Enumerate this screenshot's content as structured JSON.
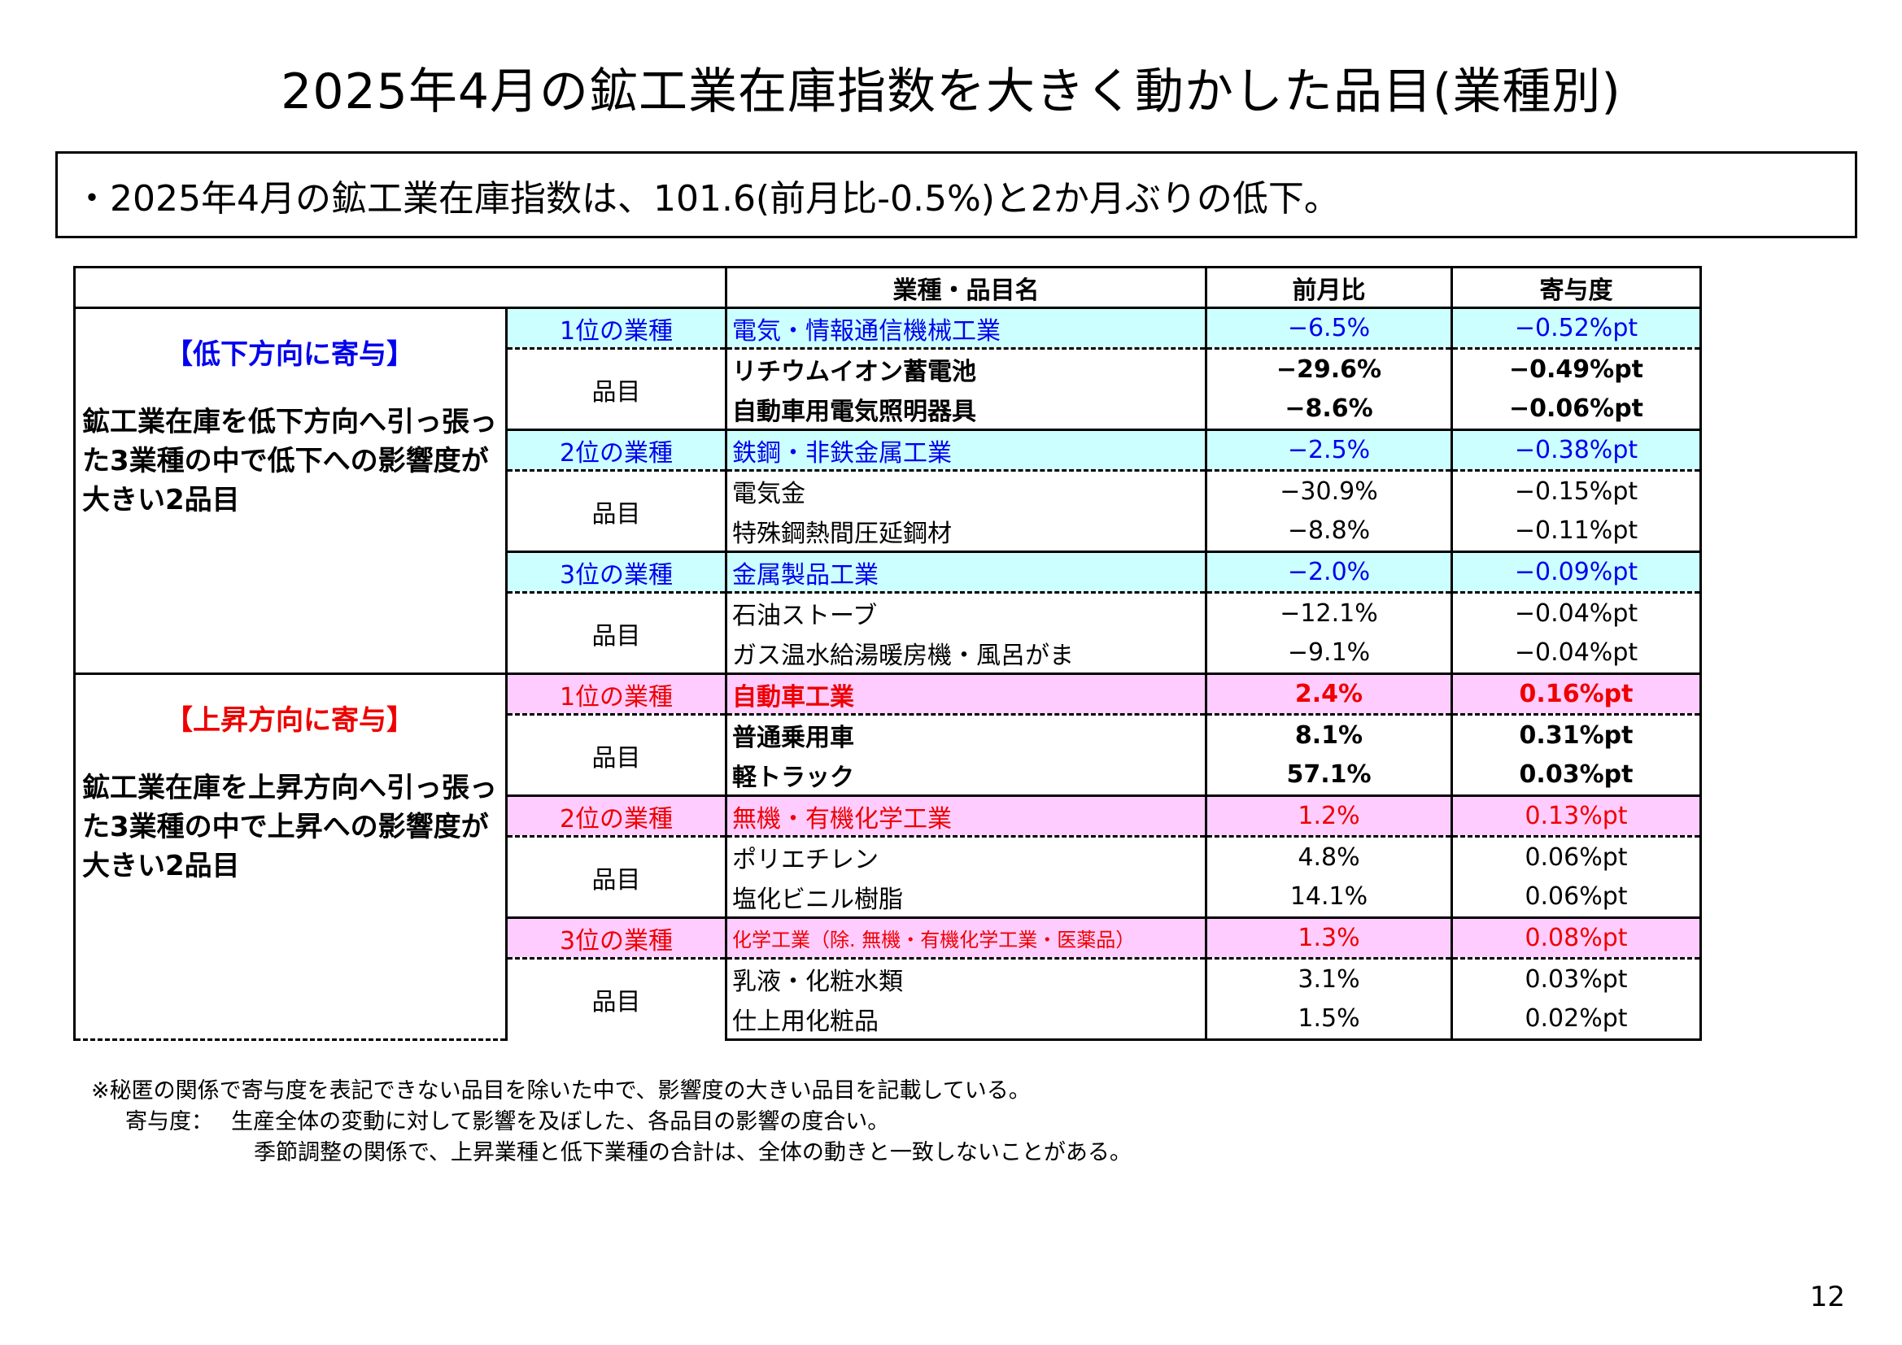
{
  "title": "2025年4月の鉱工業在庫指数を大きく動かした品目(業種別)",
  "summary": "・2025年4月の鉱工業在庫指数は、101.6(前月比-0.5%)と2か月ぶりの低下。",
  "table": {
    "headers": {
      "name": "業種・品目名",
      "mom": "前月比",
      "contribution": "寄与度"
    },
    "item_label": "品目",
    "down": {
      "heading": "【低下方向に寄与】",
      "description": "鉱工業在庫を低下方向へ引っ張った3業種の中で低下への影響度が大きい2品目",
      "industries": [
        {
          "rank": "1位の業種",
          "name": "電気・情報通信機械工業",
          "mom": "−6.5%",
          "contribution": "−0.52%pt",
          "items": [
            {
              "name": "リチウムイオン蓄電池",
              "mom": "−29.6%",
              "contribution": "−0.49%pt"
            },
            {
              "name": "自動車用電気照明器具",
              "mom": "−8.6%",
              "contribution": "−0.06%pt"
            }
          ]
        },
        {
          "rank": "2位の業種",
          "name": "鉄鋼・非鉄金属工業",
          "mom": "−2.5%",
          "contribution": "−0.38%pt",
          "items": [
            {
              "name": "電気金",
              "mom": "−30.9%",
              "contribution": "−0.15%pt"
            },
            {
              "name": "特殊鋼熱間圧延鋼材",
              "mom": "−8.8%",
              "contribution": "−0.11%pt"
            }
          ]
        },
        {
          "rank": "3位の業種",
          "name": "金属製品工業",
          "mom": "−2.0%",
          "contribution": "−0.09%pt",
          "items": [
            {
              "name": "石油ストーブ",
              "mom": "−12.1%",
              "contribution": "−0.04%pt"
            },
            {
              "name": "ガス温水給湯暖房機・風呂がま",
              "mom": "−9.1%",
              "contribution": "−0.04%pt"
            }
          ]
        }
      ]
    },
    "up": {
      "heading": "【上昇方向に寄与】",
      "description": "鉱工業在庫を上昇方向へ引っ張った3業種の中で上昇への影響度が大きい2品目",
      "industries": [
        {
          "rank": "1位の業種",
          "name": "自動車工業",
          "mom": "2.4%",
          "contribution": "0.16%pt",
          "items": [
            {
              "name": "普通乗用車",
              "mom": "8.1%",
              "contribution": "0.31%pt"
            },
            {
              "name": "軽トラック",
              "mom": "57.1%",
              "contribution": "0.03%pt"
            }
          ]
        },
        {
          "rank": "2位の業種",
          "name": "無機・有機化学工業",
          "mom": "1.2%",
          "contribution": "0.13%pt",
          "items": [
            {
              "name": "ポリエチレン",
              "mom": "4.8%",
              "contribution": "0.06%pt"
            },
            {
              "name": "塩化ビニル樹脂",
              "mom": "14.1%",
              "contribution": "0.06%pt"
            }
          ]
        },
        {
          "rank": "3位の業種",
          "name": "化学工業（除. 無機・有機化学工業・医薬品）",
          "mom": "1.3%",
          "contribution": "0.08%pt",
          "items": [
            {
              "name": "乳液・化粧水類",
              "mom": "3.1%",
              "contribution": "0.03%pt"
            },
            {
              "name": "仕上用化粧品",
              "mom": "1.5%",
              "contribution": "0.02%pt"
            }
          ]
        }
      ]
    }
  },
  "notes": {
    "line1": "※秘匿の関係で寄与度を表記できない品目を除いた中で、影響度の大きい品目を記載している。",
    "line2": "寄与度：　 生産全体の変動に対して影響を及ぼした、各品目の影響の度合い。",
    "line3": "季節調整の関係で、上昇業種と低下業種の合計は、全体の動きと一致しないことがある。"
  },
  "page_number": "12",
  "colors": {
    "down_accent": "#0000ee",
    "up_accent": "#ee0000",
    "down_row_bg": "#ccffff",
    "up_row_bg": "#ffccff"
  }
}
